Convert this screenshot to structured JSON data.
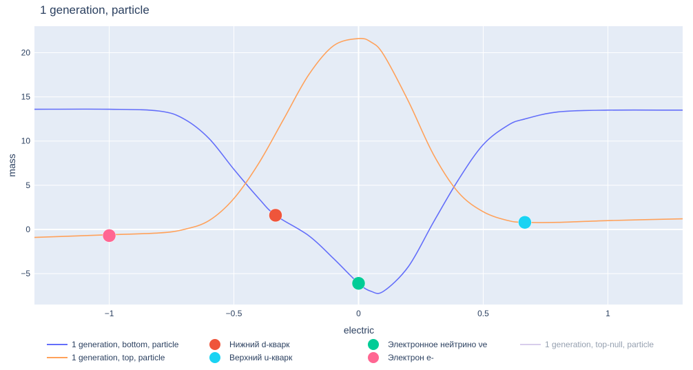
{
  "chart_data": {
    "type": "line",
    "title": "1 generation, particle",
    "xlabel": "electric",
    "ylabel": "mass",
    "xlim": [
      -1.3,
      1.3
    ],
    "ylim": [
      -8.5,
      23
    ],
    "x_ticks": [
      -1,
      -0.5,
      0,
      0.5,
      1
    ],
    "x_tick_labels": [
      "−1",
      "−0.5",
      "0",
      "0.5",
      "1"
    ],
    "y_ticks": [
      -5,
      0,
      5,
      10,
      15,
      20
    ],
    "y_tick_labels": [
      "−5",
      "0",
      "5",
      "10",
      "15",
      "20"
    ],
    "grid": true,
    "legend_position": "bottom",
    "series": [
      {
        "name": "1 generation, bottom, particle",
        "kind": "line",
        "color": "#636efa",
        "x": [
          -1.3,
          -1.0,
          -0.8,
          -0.7,
          -0.6,
          -0.5,
          -0.4,
          -0.333,
          -0.2,
          -0.1,
          0.0,
          0.05,
          0.1,
          0.2,
          0.3,
          0.4,
          0.5,
          0.6,
          0.667,
          0.8,
          1.0,
          1.3
        ],
        "y": [
          13.6,
          13.6,
          13.4,
          12.5,
          10.3,
          6.8,
          3.5,
          1.6,
          -0.7,
          -3.3,
          -6.1,
          -7.0,
          -7.0,
          -4.2,
          0.8,
          5.6,
          9.6,
          11.8,
          12.5,
          13.3,
          13.5,
          13.5
        ]
      },
      {
        "name": "1 generation, top, particle",
        "kind": "line",
        "color": "#ffa15a",
        "x": [
          -1.3,
          -1.0,
          -0.8,
          -0.7,
          -0.6,
          -0.5,
          -0.4,
          -0.3,
          -0.2,
          -0.1,
          0.0,
          0.05,
          0.1,
          0.2,
          0.3,
          0.4,
          0.5,
          0.6,
          0.667,
          0.8,
          1.0,
          1.3
        ],
        "y": [
          -0.9,
          -0.6,
          -0.4,
          0.0,
          1.0,
          3.5,
          7.5,
          12.5,
          17.5,
          20.8,
          21.6,
          21.2,
          19.8,
          14.5,
          8.5,
          4.2,
          2.0,
          1.0,
          0.8,
          0.8,
          1.0,
          1.2
        ]
      },
      {
        "name": "Нижний d-кварк",
        "kind": "marker",
        "color": "#ef553b",
        "x": [
          -0.333
        ],
        "y": [
          1.6
        ]
      },
      {
        "name": "Верхний u-кварк",
        "kind": "marker",
        "color": "#19d3f3",
        "x": [
          0.667
        ],
        "y": [
          0.8
        ]
      },
      {
        "name": "Электронное нейтрино νe",
        "kind": "marker",
        "color": "#00cc96",
        "x": [
          0.0
        ],
        "y": [
          -6.1
        ]
      },
      {
        "name": "Электрон e-",
        "kind": "marker",
        "color": "#ff6692",
        "x": [
          -1.0
        ],
        "y": [
          -0.7
        ]
      },
      {
        "name": "1 generation, top-null, particle",
        "kind": "line",
        "color": "#b19cd9",
        "legendonly": true,
        "x": [],
        "y": []
      }
    ]
  },
  "legend": {
    "bottom_particle": "1 generation, bottom, particle",
    "top_particle": "1 generation, top, particle",
    "d_quark": "Нижний d-кварк",
    "u_quark": "Верхний u-кварк",
    "neutrino": "Электронное нейтрино νe",
    "electron": "Электрон e-",
    "top_null": "1 generation, top-null, particle"
  }
}
